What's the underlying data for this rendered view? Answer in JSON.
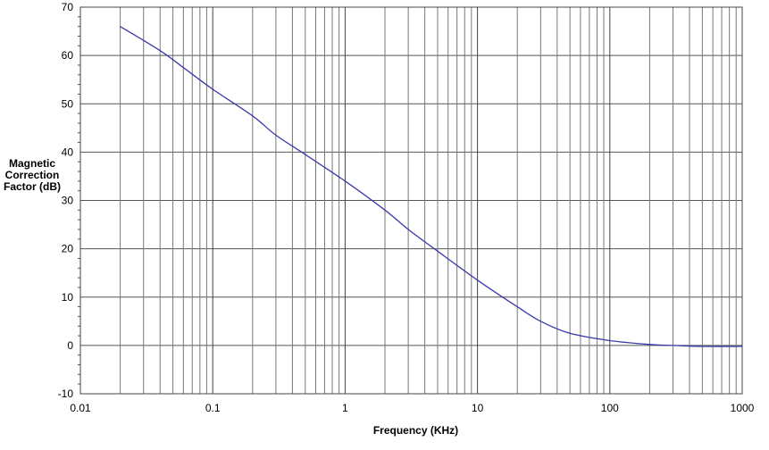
{
  "chart_data": {
    "type": "line",
    "title": "",
    "xlabel": "Frequency (KHz)",
    "ylabel_lines": [
      "Magnetic",
      "Correction",
      "Factor (dB)"
    ],
    "x_scale": "log",
    "xlim": [
      0.01,
      1000
    ],
    "ylim": [
      -10,
      70
    ],
    "x_tick_labels": [
      "0.01",
      "0.1",
      "1",
      "10",
      "100",
      "1000"
    ],
    "y_tick_labels": [
      "-10",
      "0",
      "10",
      "20",
      "30",
      "40",
      "50",
      "60",
      "70"
    ],
    "grid": true,
    "line_color": "#3a3aa8",
    "series": [
      {
        "x": [
          0.02,
          0.04,
          0.06,
          0.1,
          0.2,
          0.3,
          0.5,
          1,
          2,
          3,
          5,
          10,
          20,
          30,
          50,
          100,
          200,
          300,
          500,
          1000
        ],
        "y": [
          66,
          61,
          57.5,
          53,
          47.5,
          43.5,
          39.5,
          34,
          28,
          24,
          19.5,
          13.5,
          8,
          5,
          2.5,
          1,
          0.2,
          0,
          -0.2,
          -0.2
        ]
      }
    ]
  }
}
